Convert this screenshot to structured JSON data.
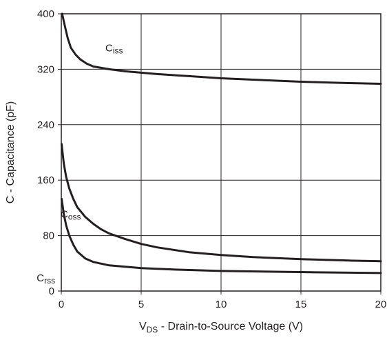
{
  "chart_data": {
    "type": "line",
    "title": "",
    "xlabel": {
      "main": "V",
      "sub": "DS",
      "rest": " - Drain-to-Source Voltage (V)"
    },
    "ylabel": "C - Capacitance (pF)",
    "xlim": [
      0,
      20
    ],
    "ylim": [
      0,
      400
    ],
    "xticks": [
      0,
      5,
      10,
      15,
      20
    ],
    "yticks": [
      0,
      80,
      160,
      240,
      320,
      400
    ],
    "grid": true,
    "legend": "none",
    "series": [
      {
        "name": "Ciss",
        "label_main": "C",
        "label_sub": "iss",
        "color": "#231f20",
        "points": [
          [
            0.05,
            400
          ],
          [
            0.2,
            385
          ],
          [
            0.4,
            365
          ],
          [
            0.6,
            351
          ],
          [
            0.9,
            341
          ],
          [
            1.2,
            334
          ],
          [
            1.6,
            328
          ],
          [
            2,
            324
          ],
          [
            3,
            320
          ],
          [
            4,
            317
          ],
          [
            5,
            315
          ],
          [
            6,
            313
          ],
          [
            8,
            310
          ],
          [
            10,
            307
          ],
          [
            12,
            305
          ],
          [
            15,
            302
          ],
          [
            18,
            300
          ],
          [
            20,
            299
          ]
        ]
      },
      {
        "name": "Coss",
        "label_main": "C",
        "label_sub": "oss",
        "color": "#231f20",
        "points": [
          [
            0.02,
            212
          ],
          [
            0.15,
            185
          ],
          [
            0.3,
            165
          ],
          [
            0.5,
            148
          ],
          [
            0.75,
            133
          ],
          [
            1,
            121
          ],
          [
            1.5,
            107
          ],
          [
            2,
            97
          ],
          [
            2.5,
            89
          ],
          [
            3,
            83
          ],
          [
            4,
            75
          ],
          [
            5,
            68
          ],
          [
            6,
            63
          ],
          [
            8,
            56
          ],
          [
            10,
            52
          ],
          [
            12,
            49
          ],
          [
            15,
            46
          ],
          [
            18,
            44
          ],
          [
            20,
            43
          ]
        ]
      },
      {
        "name": "Crss",
        "label_main": "C",
        "label_sub": "rss",
        "color": "#231f20",
        "points": [
          [
            0.02,
            133
          ],
          [
            0.15,
            112
          ],
          [
            0.3,
            95
          ],
          [
            0.5,
            80
          ],
          [
            0.75,
            67
          ],
          [
            1,
            57
          ],
          [
            1.5,
            47
          ],
          [
            2,
            42
          ],
          [
            3,
            37
          ],
          [
            4,
            35
          ],
          [
            5,
            33
          ],
          [
            7,
            31
          ],
          [
            10,
            29
          ],
          [
            13,
            28
          ],
          [
            16,
            27
          ],
          [
            20,
            26
          ]
        ]
      }
    ]
  }
}
